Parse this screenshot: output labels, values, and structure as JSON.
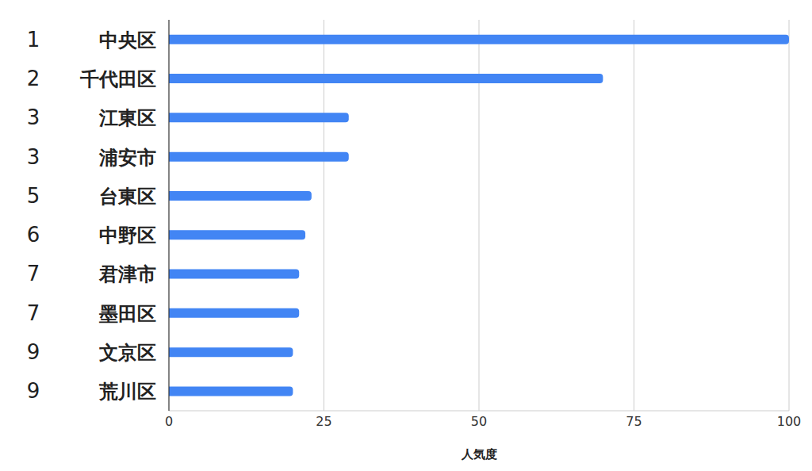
{
  "chart_data": {
    "type": "bar",
    "orientation": "horizontal",
    "categories": [
      "中央区",
      "千代田区",
      "江東区",
      "浦安市",
      "台東区",
      "中野区",
      "君津市",
      "墨田区",
      "文京区",
      "荒川区"
    ],
    "ranks": [
      1,
      2,
      3,
      3,
      5,
      6,
      7,
      7,
      9,
      9
    ],
    "values": [
      100,
      70,
      29,
      29,
      23,
      22,
      21,
      21,
      20,
      20
    ],
    "color": "#4285f4",
    "x_label": "人気度",
    "xlim": [
      0,
      100
    ],
    "xticks": [
      0,
      25,
      50,
      75,
      100
    ],
    "grid": true
  }
}
